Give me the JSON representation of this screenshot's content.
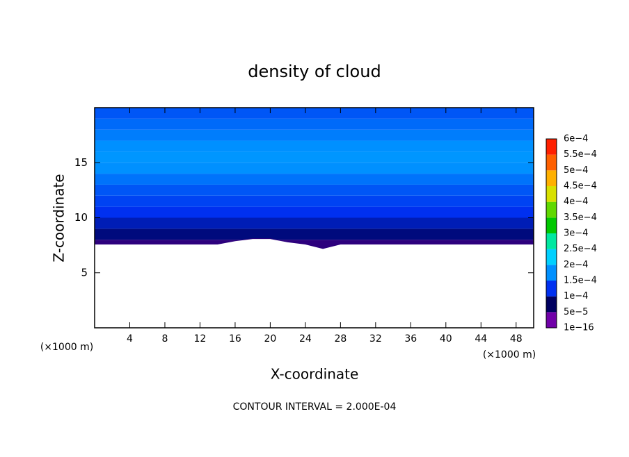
{
  "chart_data": {
    "type": "contour",
    "title": "density of cloud",
    "xlabel": "X-coordinate",
    "ylabel": "Z-coordinate",
    "x_unit": "(×1000 m)",
    "y_unit": "(×1000 m)",
    "annotation": "CONTOUR INTERVAL = 2.000E-04",
    "xlim": [
      0,
      50
    ],
    "ylim": [
      0,
      20
    ],
    "xticks": [
      4,
      8,
      12,
      16,
      20,
      24,
      28,
      32,
      36,
      40,
      44,
      48
    ],
    "yticks": [
      5,
      10,
      15
    ],
    "profile": {
      "z": [
        7.5,
        8.5,
        9.5,
        10.5,
        11.5,
        12.5,
        13.5,
        14.5,
        15.5,
        16.5,
        17.5,
        18.5,
        19.5
      ],
      "values": [
        3e-05,
        6e-05,
        8e-05,
        0.0001,
        0.00011,
        0.00012,
        0.000135,
        0.00015,
        0.000155,
        0.00015,
        0.00014,
        0.00013,
        0.00012
      ]
    },
    "cloud_base": {
      "x": [
        0,
        2,
        4,
        6,
        8,
        10,
        12,
        14,
        16,
        18,
        20,
        22,
        24,
        26,
        28,
        30,
        32,
        34,
        36,
        38,
        40,
        42,
        44,
        46,
        48,
        50
      ],
      "values": [
        7.6,
        7.6,
        7.6,
        7.6,
        7.6,
        7.6,
        7.6,
        7.6,
        7.9,
        8.1,
        8.1,
        7.8,
        7.6,
        7.2,
        7.6,
        7.6,
        7.6,
        7.6,
        7.6,
        7.6,
        7.6,
        7.6,
        7.6,
        7.6,
        7.6,
        7.6
      ]
    },
    "colorbar": {
      "ticks": [
        {
          "value": 1e-16,
          "label": "1e−16"
        },
        {
          "value": 5e-05,
          "label": "5e−5"
        },
        {
          "value": 0.0001,
          "label": "1e−4"
        },
        {
          "value": 0.00015,
          "label": "1.5e−4"
        },
        {
          "value": 0.0002,
          "label": "2e−4"
        },
        {
          "value": 0.00025,
          "label": "2.5e−4"
        },
        {
          "value": 0.0003,
          "label": "3e−4"
        },
        {
          "value": 0.00035,
          "label": "3.5e−4"
        },
        {
          "value": 0.0004,
          "label": "4e−4"
        },
        {
          "value": 0.00045,
          "label": "4.5e−4"
        },
        {
          "value": 0.0005,
          "label": "5e−4"
        },
        {
          "value": 0.00055,
          "label": "5.5e−4"
        },
        {
          "value": 0.0006,
          "label": "6e−4"
        }
      ],
      "colors": [
        "#7000a8",
        "#000060",
        "#0030f0",
        "#0090ff",
        "#00d0ff",
        "#00e8a0",
        "#00c800",
        "#60d800",
        "#d8e000",
        "#ffb000",
        "#ff6000",
        "#ff2000",
        "#ff8080"
      ]
    }
  }
}
